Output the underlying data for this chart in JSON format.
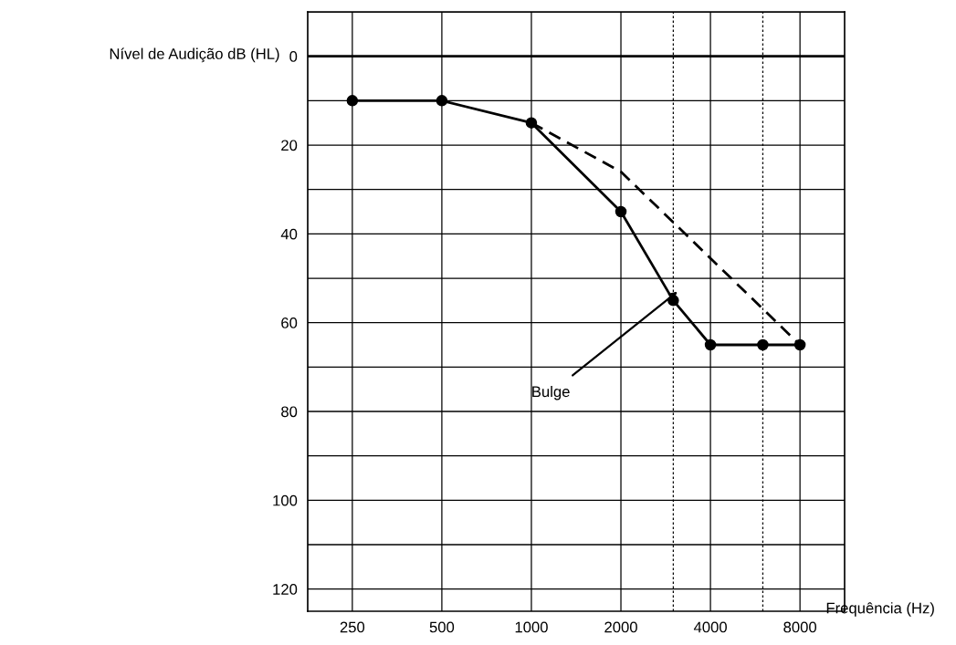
{
  "chart_data": {
    "type": "line",
    "xlabel": "Frequência (Hz)",
    "ylabel": "Nível de Audição dB (HL)",
    "log": "x",
    "xlim": [
      177,
      11300
    ],
    "xticks": [
      250,
      500,
      1000,
      2000,
      4000,
      8000
    ],
    "ylim": [
      125,
      -10
    ],
    "yticks": [
      {
        "value": -10,
        "label": null
      },
      0,
      {
        "value": 10,
        "label": null
      },
      20,
      {
        "value": 30,
        "label": null
      },
      40,
      {
        "value": 50,
        "label": null
      },
      60,
      {
        "value": 70,
        "label": null
      },
      80,
      {
        "value": 90,
        "label": null
      },
      100,
      {
        "value": 110,
        "label": null
      },
      120
    ],
    "grid": true,
    "legend": false,
    "series": [
      {
        "color": "#000000",
        "marker": "circle",
        "line_style": "solid",
        "x": [
          250,
          500,
          1000,
          2000,
          3000,
          4000,
          6000,
          8000
        ],
        "values": [
          10,
          10,
          15,
          35,
          55,
          65,
          65,
          65
        ]
      },
      {
        "color": "#000000",
        "marker": "none",
        "line_style": "dashed",
        "x": [
          1000,
          2000,
          8000
        ],
        "values": [
          15,
          26,
          65
        ]
      }
    ],
    "ref_lines": [
      {
        "axis": "x",
        "value": 3000,
        "line_style": "dotted",
        "color": "#000000"
      },
      {
        "axis": "x",
        "value": 6000,
        "line_style": "dotted",
        "color": "#000000"
      },
      {
        "axis": "y",
        "value": 0,
        "line_style": "solid",
        "color": "#000000"
      }
    ],
    "annotations": [
      {
        "text": "Bulge",
        "x": 3100,
        "y": 53
      }
    ]
  }
}
